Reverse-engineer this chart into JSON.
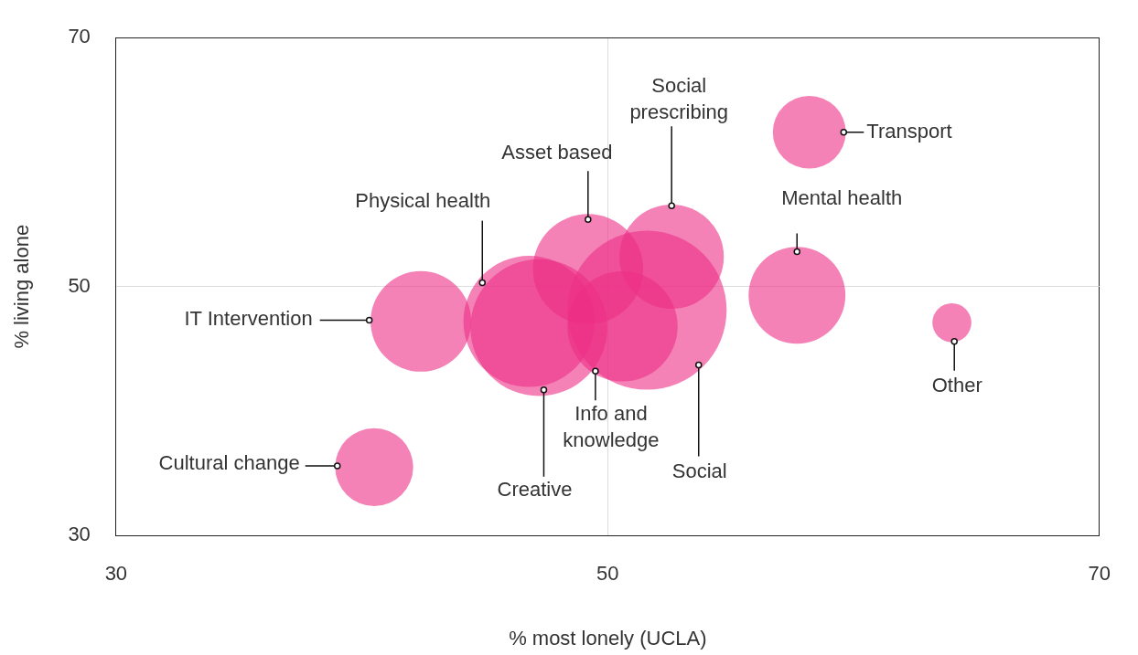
{
  "chart_data": {
    "type": "bubble",
    "xlabel": "% most lonely (UCLA)",
    "ylabel": "% living alone",
    "xlim": [
      30,
      70
    ],
    "xticks": [
      30,
      50,
      70
    ],
    "ylim": [
      30,
      70
    ],
    "yticks": [
      30,
      50,
      70
    ],
    "grid": true,
    "legend": false,
    "series": [
      {
        "color": "#ec2f86",
        "x": [
          58.2,
          57.7,
          64.0,
          52.6,
          49.2,
          51.6,
          50.6,
          47.2,
          46.8,
          42.4,
          40.5
        ],
        "values": [
          62.4,
          49.3,
          47.1,
          52.4,
          51.4,
          48.1,
          46.8,
          46.7,
          47.2,
          47.2,
          35.5
        ],
        "sizes": [
          0.21,
          0.37,
          0.06,
          0.43,
          0.48,
          1,
          0.48,
          0.74,
          0.68,
          0.4,
          0.24
        ]
      }
    ],
    "annotations": [
      {
        "text": "Transport",
        "x": 59.6,
        "y": 62.4
      },
      {
        "text": "Mental health",
        "x": 57.7,
        "y": 52.8
      },
      {
        "text": "Other",
        "x": 64.1,
        "y": 45.6
      },
      {
        "text": "Social prescribing",
        "x": 52.6,
        "y": 56.5
      },
      {
        "text": "Asset based",
        "x": 49.2,
        "y": 55.4
      },
      {
        "text": "Social",
        "x": 53.7,
        "y": 43.7
      },
      {
        "text": "Info and knowledge",
        "x": 49.5,
        "y": 43.2
      },
      {
        "text": "Creative",
        "x": 47.4,
        "y": 41.7
      },
      {
        "text": "Physical health",
        "x": 44.9,
        "y": 50.3
      },
      {
        "text": "IT Intervention",
        "x": 40.3,
        "y": 47.3
      },
      {
        "text": "Cultural change",
        "x": 39.0,
        "y": 35.6
      }
    ]
  }
}
